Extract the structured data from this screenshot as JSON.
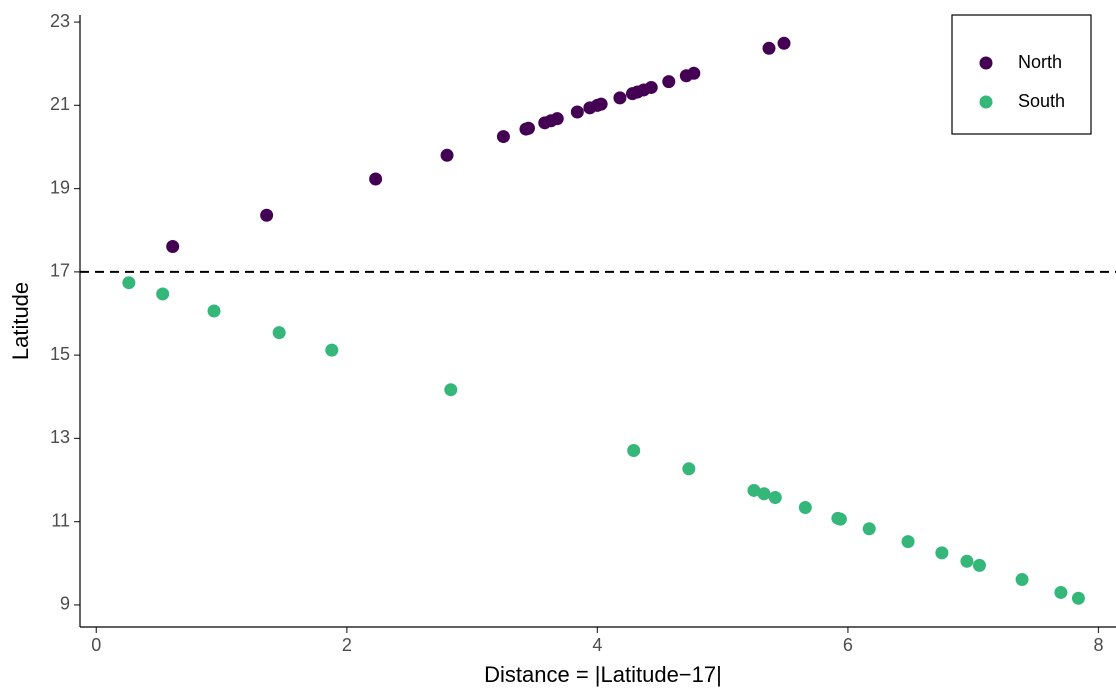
{
  "chart_data": {
    "type": "scatter",
    "x_label": "Distance = |Latitude−17|",
    "y_label": "Latitude",
    "series": [
      {
        "name": "North",
        "color": "#440154",
        "x": [
          0.61,
          1.36,
          2.23,
          2.8,
          3.25,
          3.43,
          3.45,
          3.58,
          3.63,
          3.68,
          3.84,
          3.94,
          4.0,
          4.03,
          4.18,
          4.28,
          4.32,
          4.37,
          4.43,
          4.57,
          4.71,
          4.77,
          5.37,
          5.49
        ],
        "values": [
          17.61,
          18.36,
          19.23,
          19.8,
          20.25,
          20.43,
          20.45,
          20.58,
          20.63,
          20.68,
          20.84,
          20.94,
          21.0,
          21.03,
          21.18,
          21.28,
          21.32,
          21.37,
          21.43,
          21.57,
          21.71,
          21.77,
          22.37,
          22.49
        ]
      },
      {
        "name": "South",
        "color": "#35b779",
        "x": [
          0.26,
          0.53,
          0.94,
          1.46,
          1.88,
          2.83,
          4.29,
          4.73,
          5.25,
          5.33,
          5.42,
          5.66,
          5.92,
          5.94,
          6.17,
          6.48,
          6.75,
          6.95,
          7.05,
          7.39,
          7.7,
          7.84
        ],
        "values": [
          16.74,
          16.47,
          16.06,
          15.54,
          15.12,
          14.17,
          12.71,
          12.27,
          11.75,
          11.67,
          11.58,
          11.34,
          11.08,
          11.06,
          10.83,
          10.52,
          10.25,
          10.05,
          9.95,
          9.61,
          9.3,
          9.16
        ]
      }
    ],
    "hline": 17,
    "xlim": [
      -0.13,
      8.14
    ],
    "xticks": [
      0,
      2,
      4,
      6,
      8
    ],
    "ylim": [
      8.47,
      23.17
    ],
    "yticks": [
      9,
      11,
      13,
      15,
      17,
      19,
      21,
      23
    ],
    "legend_position": "top-right"
  }
}
